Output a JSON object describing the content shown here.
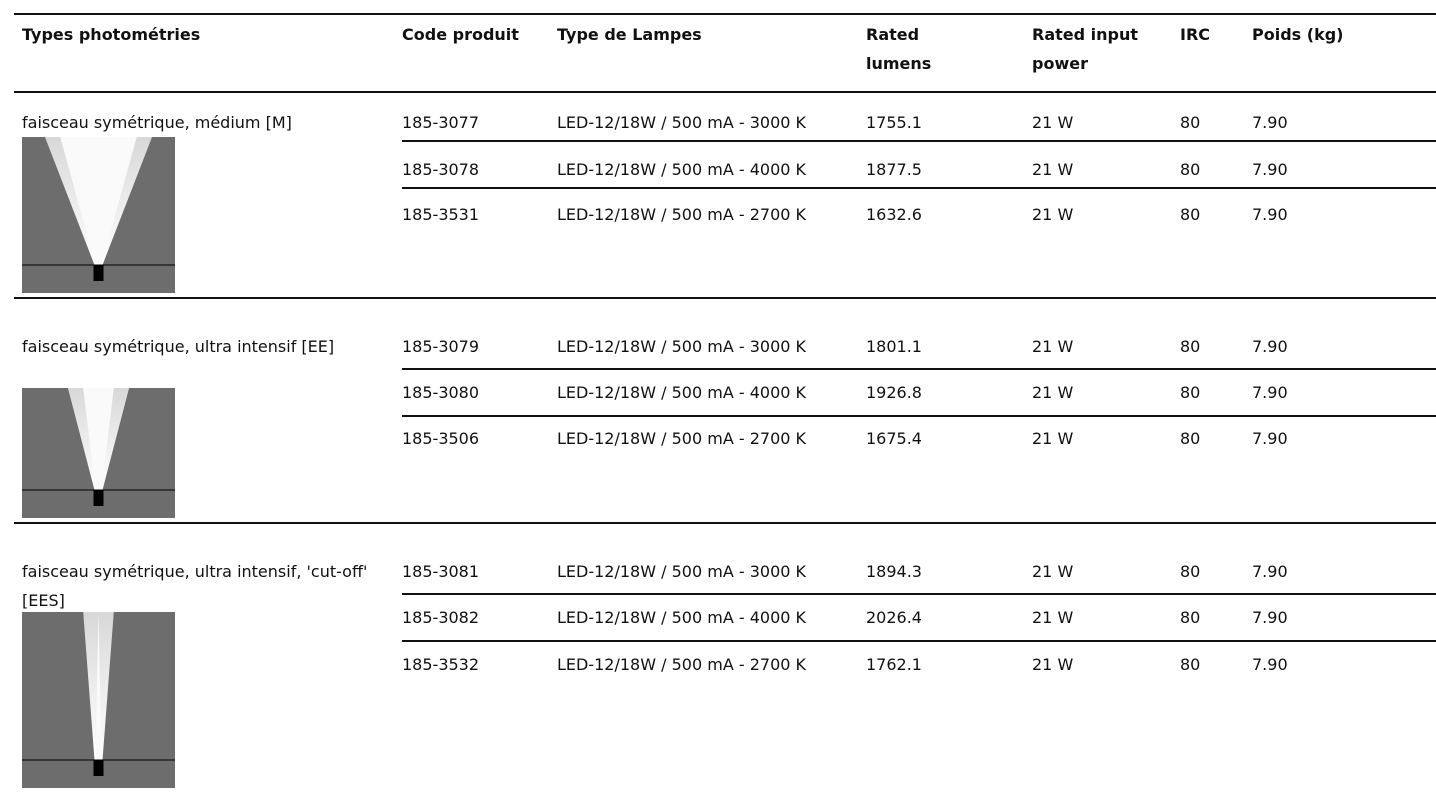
{
  "table": {
    "header": [
      "Types photométries",
      "Code produit",
      "Type de Lampes",
      "Rated lumens",
      "Rated input power",
      "IRC",
      "Poids (kg)"
    ],
    "groups": [
      {
        "label": "faisceau symétrique, médium [M]",
        "rows": [
          [
            "185-3077",
            "LED-12/18W / 500 mA - 3000 K",
            "1755.1",
            "21 W",
            "80",
            "7.90"
          ],
          [
            "185-3078",
            "LED-12/18W / 500 mA - 4000 K",
            "1877.5",
            "21 W",
            "80",
            "7.90"
          ],
          [
            "185-3531",
            "LED-12/18W / 500 mA - 2700 K",
            "1632.6",
            "21 W",
            "80",
            "7.90"
          ]
        ]
      },
      {
        "label": "faisceau symétrique, ultra intensif [EE]",
        "rows": [
          [
            "185-3079",
            "LED-12/18W / 500 mA - 3000 K",
            "1801.1",
            "21 W",
            "80",
            "7.90"
          ],
          [
            "185-3080",
            "LED-12/18W / 500 mA - 4000 K",
            "1926.8",
            "21 W",
            "80",
            "7.90"
          ],
          [
            "185-3506",
            "LED-12/18W / 500 mA - 2700 K",
            "1675.4",
            "21 W",
            "80",
            "7.90"
          ]
        ]
      },
      {
        "label": "faisceau symétrique, ultra intensif, 'cut-off' [EES]",
        "rows": [
          [
            "185-3081",
            "LED-12/18W / 500 mA - 3000 K",
            "1894.3",
            "21 W",
            "80",
            "7.90"
          ],
          [
            "185-3082",
            "LED-12/18W / 500 mA - 4000 K",
            "2026.4",
            "21 W",
            "80",
            "7.90"
          ],
          [
            "185-3532",
            "LED-12/18W / 500 mA - 2700 K",
            "1762.1",
            "21 W",
            "80",
            "7.90"
          ]
        ]
      }
    ]
  }
}
